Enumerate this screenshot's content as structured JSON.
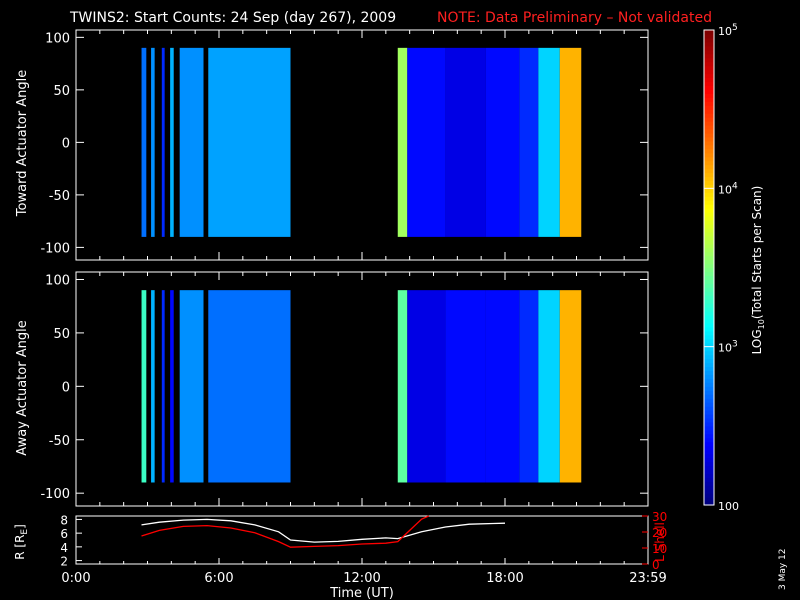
{
  "title": "TWINS2: Start Counts: 24 Sep (day 267), 2009",
  "note": "NOTE: Data Preliminary – Not validated",
  "side_date": "3 May 12",
  "colors": {
    "background": "#000000",
    "note": "#ff2020",
    "lshell": "#ff0000",
    "r_line": "#ffffff",
    "axes": "#ffffff"
  },
  "chart_data": [
    {
      "type": "heatmap",
      "name": "toward-panel",
      "ylabel": "Toward Actuator Angle",
      "ylim": [
        -112,
        107
      ],
      "yticks": [
        -100,
        -50,
        0,
        50,
        100
      ],
      "xlim": [
        0,
        24
      ],
      "x_hours": [
        [
          2.75,
          2.95
        ],
        [
          3.15,
          3.3
        ],
        [
          3.6,
          3.72
        ],
        [
          3.95,
          4.1
        ],
        [
          4.35,
          5.35
        ],
        [
          5.55,
          9.0
        ],
        [
          13.5,
          13.9
        ],
        [
          13.9,
          15.5
        ],
        [
          15.5,
          17.2
        ],
        [
          17.2,
          18.6
        ],
        [
          18.6,
          19.4
        ],
        [
          19.4,
          20.3
        ],
        [
          20.3,
          21.2
        ]
      ],
      "angle_range": [
        -90,
        90
      ],
      "colorbar_levels_log10": [
        2.7,
        2.8,
        2.5,
        2.9,
        2.8,
        2.85,
        3.6,
        2.4,
        2.3,
        2.4,
        2.5,
        3.0,
        4.1
      ]
    },
    {
      "type": "heatmap",
      "name": "away-panel",
      "ylabel": "Away Actuator Angle",
      "ylim": [
        -112,
        107
      ],
      "yticks": [
        -100,
        -50,
        0,
        50,
        100
      ],
      "xlim": [
        0,
        24
      ],
      "x_hours": [
        [
          2.75,
          2.95
        ],
        [
          3.15,
          3.3
        ],
        [
          3.6,
          3.72
        ],
        [
          3.95,
          4.1
        ],
        [
          4.35,
          5.35
        ],
        [
          5.55,
          9.0
        ],
        [
          13.5,
          13.9
        ],
        [
          13.9,
          15.5
        ],
        [
          15.5,
          17.2
        ],
        [
          17.2,
          18.6
        ],
        [
          18.6,
          19.4
        ],
        [
          19.4,
          20.3
        ],
        [
          20.3,
          21.2
        ]
      ],
      "angle_range": [
        -90,
        90
      ],
      "colorbar_levels_log10": [
        3.3,
        2.9,
        2.5,
        2.4,
        2.8,
        2.7,
        3.4,
        2.3,
        2.4,
        2.4,
        2.5,
        3.0,
        4.1
      ]
    },
    {
      "type": "line",
      "name": "orbit-panel",
      "xlabel": "Time (UT)",
      "xlim": [
        0,
        24
      ],
      "xticks": [
        0,
        6,
        12,
        18,
        24
      ],
      "xtick_labels": [
        "0:00",
        "6:00",
        "12:00",
        "18:00",
        "23:59"
      ],
      "left_axis": {
        "label": "R [R",
        "label_sub": "E",
        "label_end": "]",
        "ylim": [
          1.5,
          8.5
        ],
        "yticks": [
          2,
          4,
          6,
          8
        ]
      },
      "right_axis": {
        "label": "L Shell",
        "ylim": [
          0,
          30
        ],
        "yticks": [
          0,
          10,
          20,
          30
        ]
      },
      "series": [
        {
          "name": "R",
          "axis": "left",
          "x": [
            2.75,
            3.5,
            4.5,
            5.5,
            6.5,
            7.5,
            8.5,
            9.0,
            10.0,
            11.0,
            12.0,
            13.0,
            13.5,
            14.5,
            15.5,
            16.5,
            17.5,
            18.0
          ],
          "y": [
            7.2,
            7.6,
            7.9,
            8.0,
            7.8,
            7.2,
            6.2,
            5.0,
            4.7,
            4.8,
            5.1,
            5.3,
            5.2,
            6.2,
            6.9,
            7.3,
            7.4,
            7.45
          ]
        },
        {
          "name": "L Shell",
          "axis": "right",
          "x": [
            2.75,
            3.5,
            4.5,
            5.5,
            6.5,
            7.5,
            8.5,
            9.0,
            10.0,
            11.0,
            12.0,
            13.0,
            13.5,
            14.0,
            14.5,
            14.8
          ],
          "y": [
            17.5,
            21.0,
            23.5,
            24.0,
            22.5,
            19.5,
            14.0,
            10.5,
            11.0,
            11.5,
            12.5,
            13.0,
            14.0,
            21.0,
            28.0,
            31.0
          ]
        }
      ]
    },
    {
      "type": "colorbar",
      "name": "log-colorbar",
      "label": "LOG₁₀(Total Starts per Scan)",
      "label_text": "LOG",
      "label_sub": "10",
      "label_rest": "(Total Starts per Scan)",
      "range_log10": [
        2,
        5
      ],
      "ticks": [
        {
          "value": 5,
          "base": "10",
          "exp": "5"
        },
        {
          "value": 4,
          "base": "10",
          "exp": "4"
        },
        {
          "value": 3,
          "base": "10",
          "exp": "3"
        },
        {
          "value": 2,
          "base": "100",
          "exp": ""
        }
      ]
    }
  ]
}
